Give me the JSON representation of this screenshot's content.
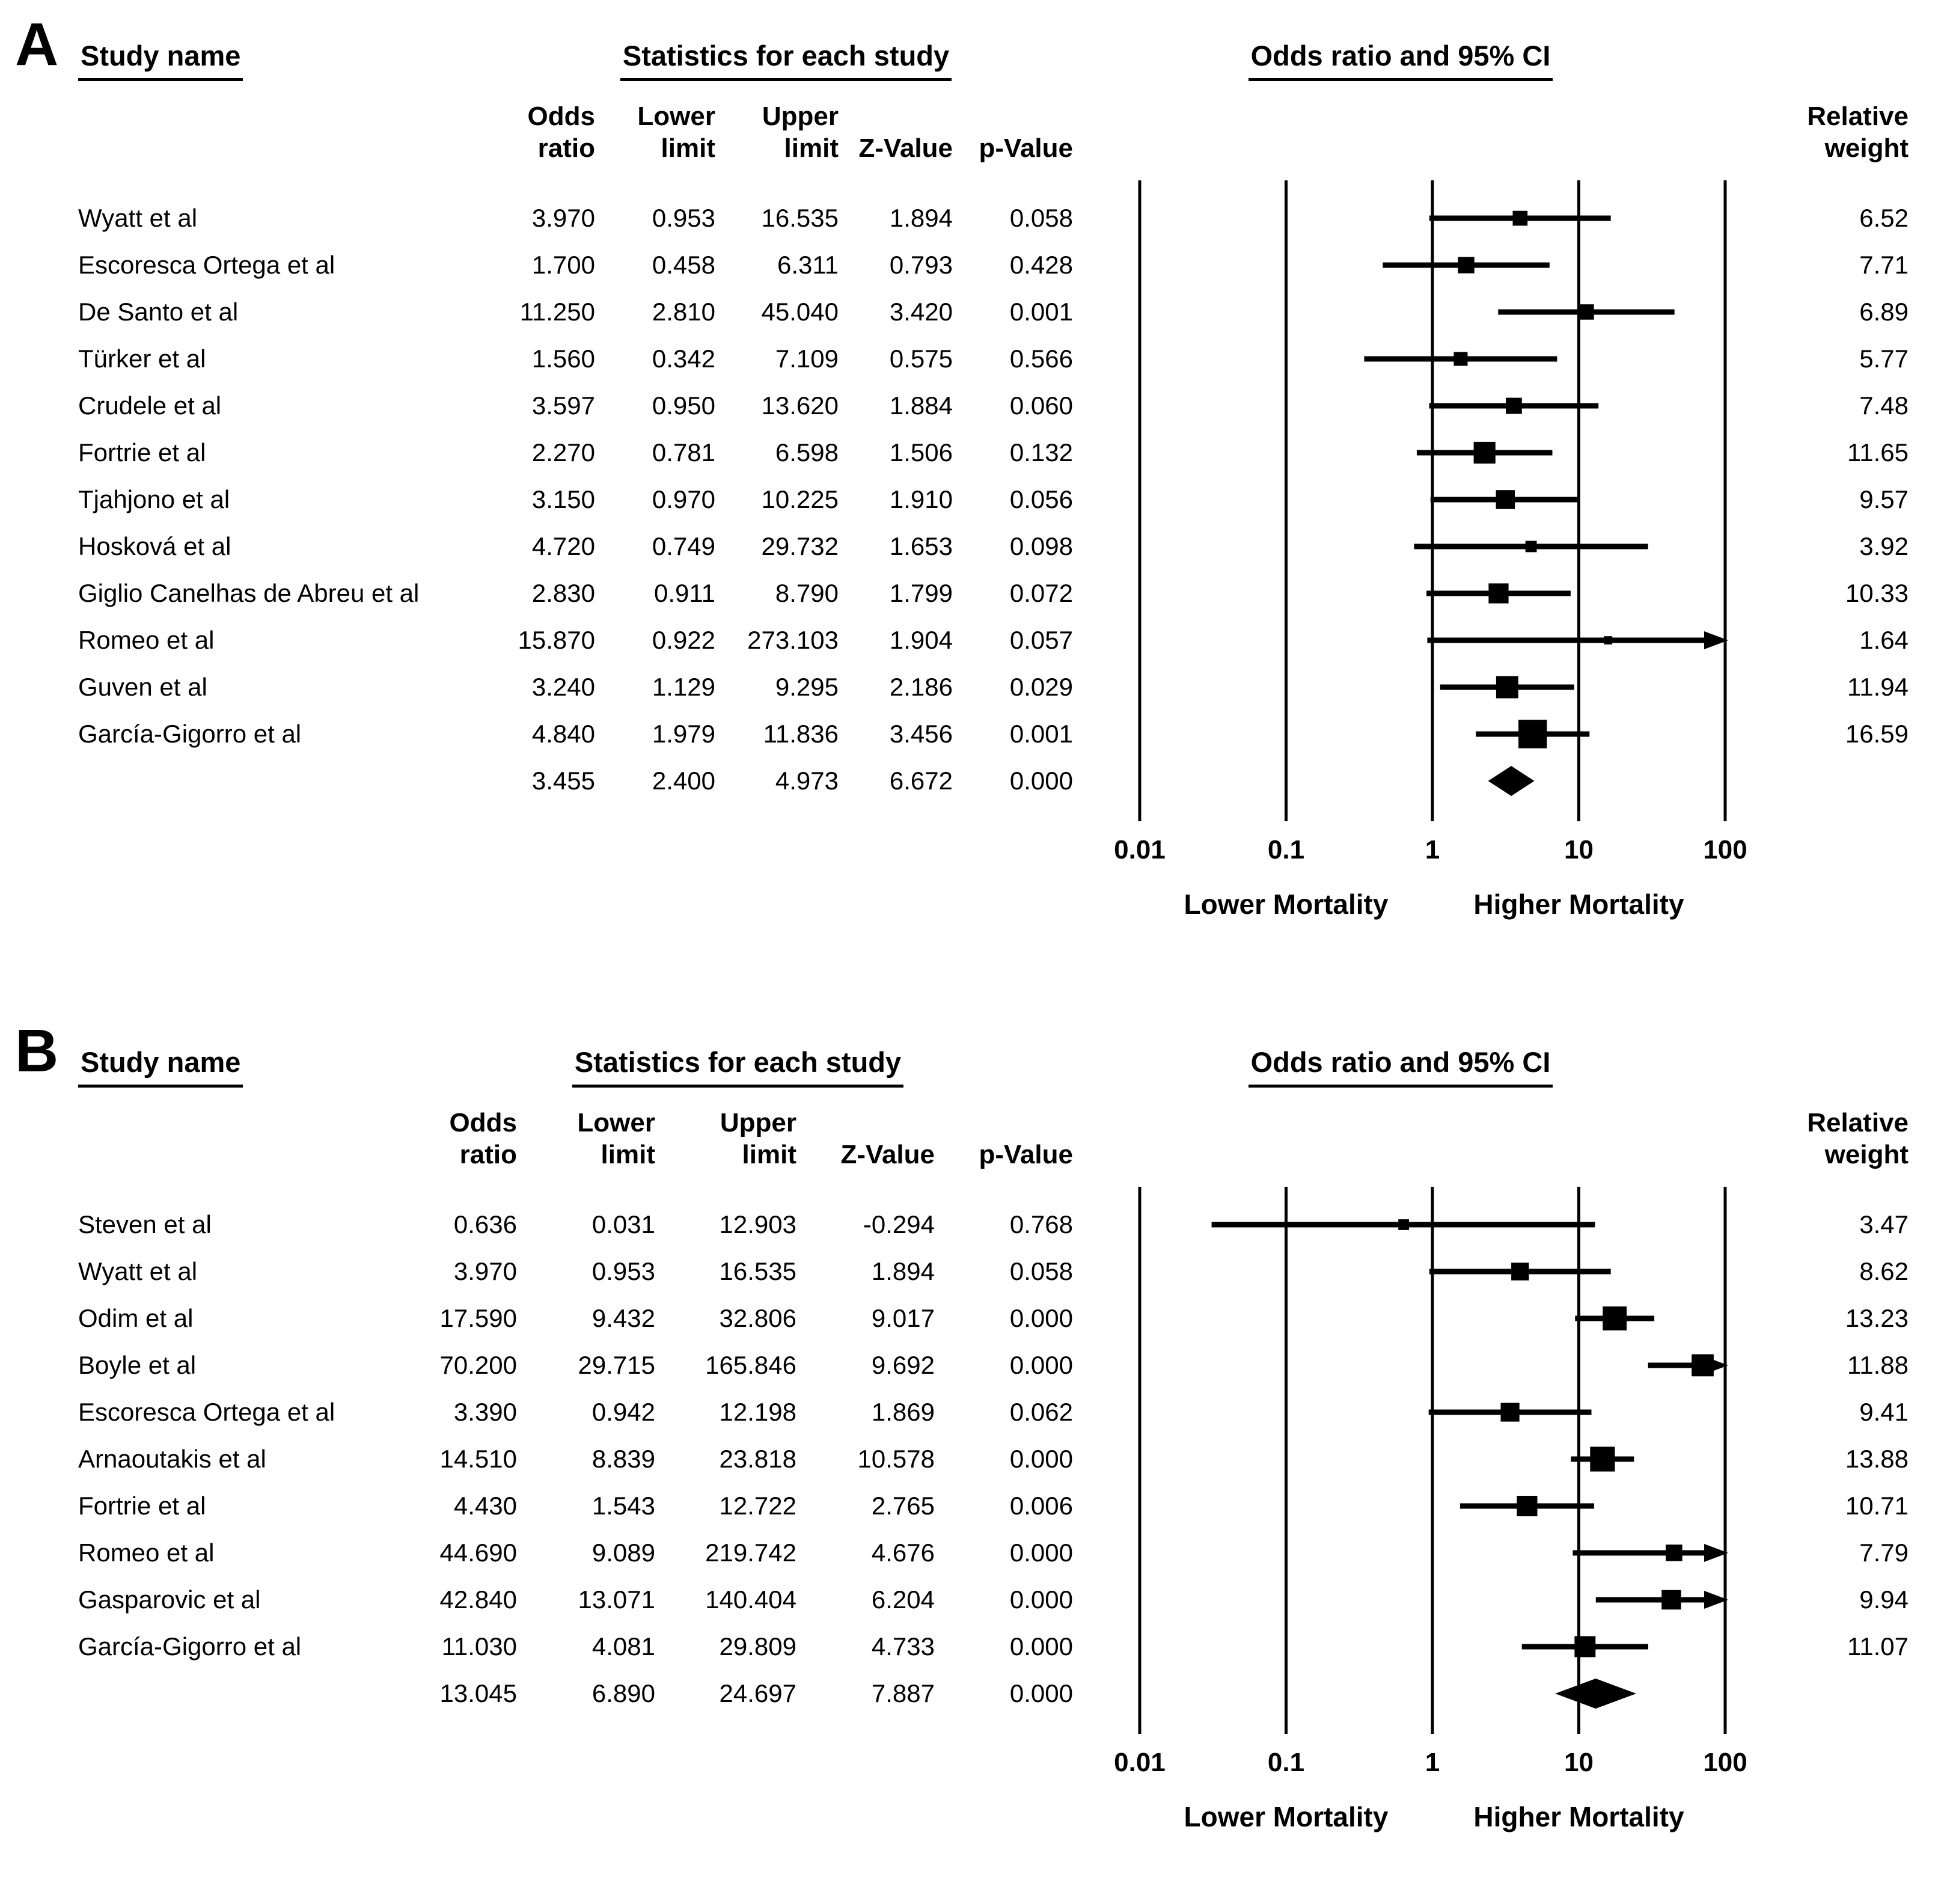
{
  "colors": {
    "ink": "#000000",
    "background": "#ffffff"
  },
  "chart_data": [
    {
      "type": "scatter",
      "subtype": "forest_plot",
      "label": "A",
      "headers": {
        "study": "Study name",
        "stats": "Statistics for each study",
        "plot": "Odds ratio and 95% CI",
        "col_odds": "Odds\nratio",
        "col_lower": "Lower\nlimit",
        "col_upper": "Upper\nlimit",
        "col_z": "Z-Value",
        "col_p": "p-Value",
        "weight": "Relative\nweight"
      },
      "axis": {
        "scale": "log10",
        "range": [
          0.01,
          100
        ],
        "tick_labels": [
          "0.01",
          "0.1",
          "1",
          "10",
          "100"
        ],
        "left_label": "Lower Mortality",
        "right_label": "Higher Mortality"
      },
      "studies": [
        {
          "name": "Wyatt et al",
          "or": "3.970",
          "lower": "0.953",
          "upper": "16.535",
          "z": "1.894",
          "p": "0.058",
          "weight": "6.52"
        },
        {
          "name": "Escoresca Ortega et al",
          "or": "1.700",
          "lower": "0.458",
          "upper": "6.311",
          "z": "0.793",
          "p": "0.428",
          "weight": "7.71"
        },
        {
          "name": "De Santo et al",
          "or": "11.250",
          "lower": "2.810",
          "upper": "45.040",
          "z": "3.420",
          "p": "0.001",
          "weight": "6.89"
        },
        {
          "name": "Türker et al",
          "or": "1.560",
          "lower": "0.342",
          "upper": "7.109",
          "z": "0.575",
          "p": "0.566",
          "weight": "5.77"
        },
        {
          "name": "Crudele et al",
          "or": "3.597",
          "lower": "0.950",
          "upper": "13.620",
          "z": "1.884",
          "p": "0.060",
          "weight": "7.48"
        },
        {
          "name": "Fortrie et al",
          "or": "2.270",
          "lower": "0.781",
          "upper": "6.598",
          "z": "1.506",
          "p": "0.132",
          "weight": "11.65"
        },
        {
          "name": "Tjahjono et al",
          "or": "3.150",
          "lower": "0.970",
          "upper": "10.225",
          "z": "1.910",
          "p": "0.056",
          "weight": "9.57"
        },
        {
          "name": "Hosková et al",
          "or": "4.720",
          "lower": "0.749",
          "upper": "29.732",
          "z": "1.653",
          "p": "0.098",
          "weight": "3.92"
        },
        {
          "name": "Giglio Canelhas de Abreu et al",
          "or": "2.830",
          "lower": "0.911",
          "upper": "8.790",
          "z": "1.799",
          "p": "0.072",
          "weight": "10.33"
        },
        {
          "name": "Romeo et al",
          "or": "15.870",
          "lower": "0.922",
          "upper": "273.103",
          "z": "1.904",
          "p": "0.057",
          "weight": "1.64"
        },
        {
          "name": "Guven et al",
          "or": "3.240",
          "lower": "1.129",
          "upper": "9.295",
          "z": "2.186",
          "p": "0.029",
          "weight": "11.94"
        },
        {
          "name": "García-Gigorro et al",
          "or": "4.840",
          "lower": "1.979",
          "upper": "11.836",
          "z": "3.456",
          "p": "0.001",
          "weight": "16.59"
        }
      ],
      "summary": {
        "or": "3.455",
        "lower": "2.400",
        "upper": "4.973",
        "z": "6.672",
        "p": "0.000"
      }
    },
    {
      "type": "scatter",
      "subtype": "forest_plot",
      "label": "B",
      "headers": {
        "study": "Study name",
        "stats": "Statistics for each study",
        "plot": "Odds ratio and 95% CI",
        "col_odds": "Odds\nratio",
        "col_lower": "Lower\nlimit",
        "col_upper": "Upper\nlimit",
        "col_z": "Z-Value",
        "col_p": "p-Value",
        "weight": "Relative\nweight"
      },
      "axis": {
        "scale": "log10",
        "range": [
          0.01,
          100
        ],
        "tick_labels": [
          "0.01",
          "0.1",
          "1",
          "10",
          "100"
        ],
        "left_label": "Lower Mortality",
        "right_label": "Higher Mortality"
      },
      "studies": [
        {
          "name": "Steven et al",
          "or": "0.636",
          "lower": "0.031",
          "upper": "12.903",
          "z": "-0.294",
          "p": "0.768",
          "weight": "3.47"
        },
        {
          "name": "Wyatt et al",
          "or": "3.970",
          "lower": "0.953",
          "upper": "16.535",
          "z": "1.894",
          "p": "0.058",
          "weight": "8.62"
        },
        {
          "name": "Odim et al",
          "or": "17.590",
          "lower": "9.432",
          "upper": "32.806",
          "z": "9.017",
          "p": "0.000",
          "weight": "13.23"
        },
        {
          "name": "Boyle et al",
          "or": "70.200",
          "lower": "29.715",
          "upper": "165.846",
          "z": "9.692",
          "p": "0.000",
          "weight": "11.88"
        },
        {
          "name": "Escoresca Ortega et al",
          "or": "3.390",
          "lower": "0.942",
          "upper": "12.198",
          "z": "1.869",
          "p": "0.062",
          "weight": "9.41"
        },
        {
          "name": "Arnaoutakis et al",
          "or": "14.510",
          "lower": "8.839",
          "upper": "23.818",
          "z": "10.578",
          "p": "0.000",
          "weight": "13.88"
        },
        {
          "name": "Fortrie et al",
          "or": "4.430",
          "lower": "1.543",
          "upper": "12.722",
          "z": "2.765",
          "p": "0.006",
          "weight": "10.71"
        },
        {
          "name": "Romeo et al",
          "or": "44.690",
          "lower": "9.089",
          "upper": "219.742",
          "z": "4.676",
          "p": "0.000",
          "weight": "7.79"
        },
        {
          "name": "Gasparovic et al",
          "or": "42.840",
          "lower": "13.071",
          "upper": "140.404",
          "z": "6.204",
          "p": "0.000",
          "weight": "9.94"
        },
        {
          "name": "García-Gigorro et al",
          "or": "11.030",
          "lower": "4.081",
          "upper": "29.809",
          "z": "4.733",
          "p": "0.000",
          "weight": "11.07"
        }
      ],
      "summary": {
        "or": "13.045",
        "lower": "6.890",
        "upper": "24.697",
        "z": "7.887",
        "p": "0.000"
      }
    }
  ]
}
